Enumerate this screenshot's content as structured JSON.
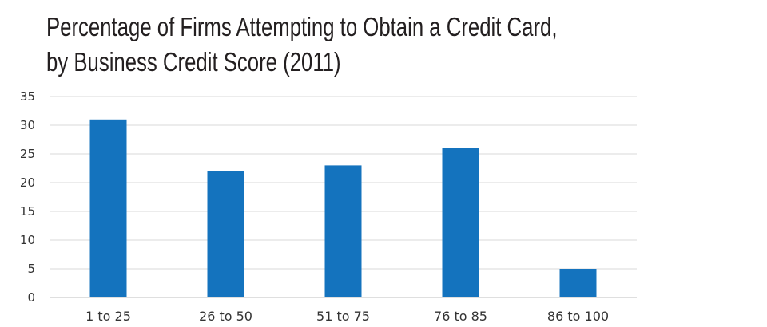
{
  "chart_data": {
    "type": "bar",
    "title_lines": [
      "Percentage of Firms Attempting to Obtain a Credit Card,",
      "by Business Credit Score (2011)"
    ],
    "categories": [
      "1 to 25",
      "26 to 50",
      "51 to 75",
      "76 to 85",
      "86 to 100"
    ],
    "values": [
      31,
      22,
      23,
      26,
      5
    ],
    "yticks": [
      0,
      5,
      10,
      15,
      20,
      25,
      30,
      35
    ],
    "ylim": [
      0,
      35
    ],
    "xlabel": "",
    "ylabel": "",
    "grid": true,
    "legend": "none",
    "bar_color": "#1473be",
    "grid_color": "#d9d9d9",
    "axis_color": "#bfbfbf"
  }
}
